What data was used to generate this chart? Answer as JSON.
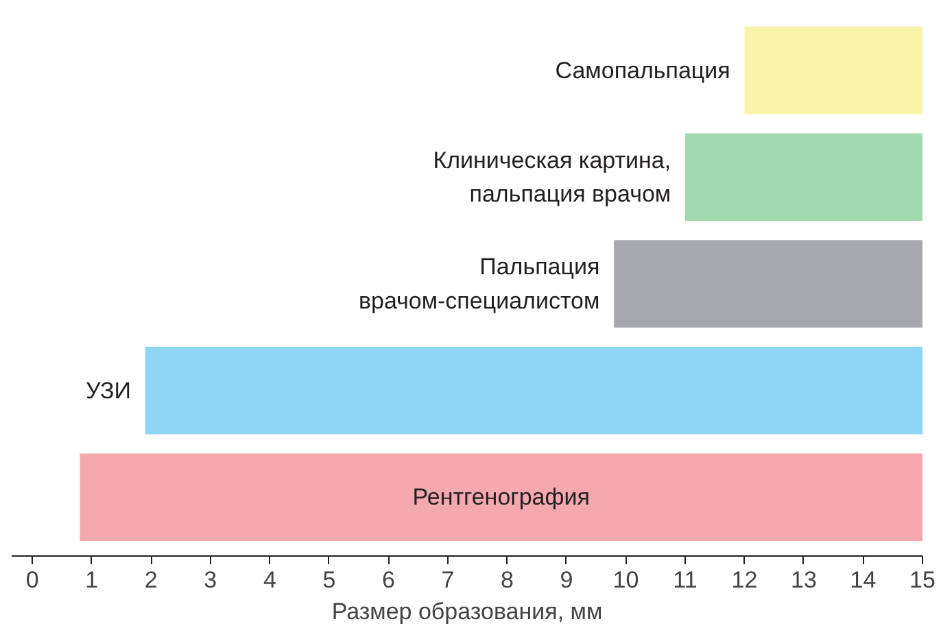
{
  "chart_data": {
    "type": "bar",
    "orientation": "horizontal",
    "xlabel": "Размер образования, мм",
    "categories": [
      "Самопальпация",
      "Клиническая картина,\nпальпация врачом",
      "Пальпация\nврачом-специалистом",
      "УЗИ",
      "Рентгенография"
    ],
    "base": [
      12,
      11,
      9.8,
      1.9,
      0.8
    ],
    "values": [
      3,
      4,
      5.2,
      13.1,
      14.2
    ],
    "colors": [
      "#f9f5a8",
      "#a1d9b1",
      "#a6a8ab",
      "#8fd6f4",
      "#f4a9ae"
    ],
    "xlim": [
      -0.35,
      15
    ],
    "xticks": [
      0,
      1,
      2,
      3,
      4,
      5,
      6,
      7,
      8,
      9,
      10,
      11,
      12,
      13,
      14,
      15
    ],
    "grid": false
  }
}
